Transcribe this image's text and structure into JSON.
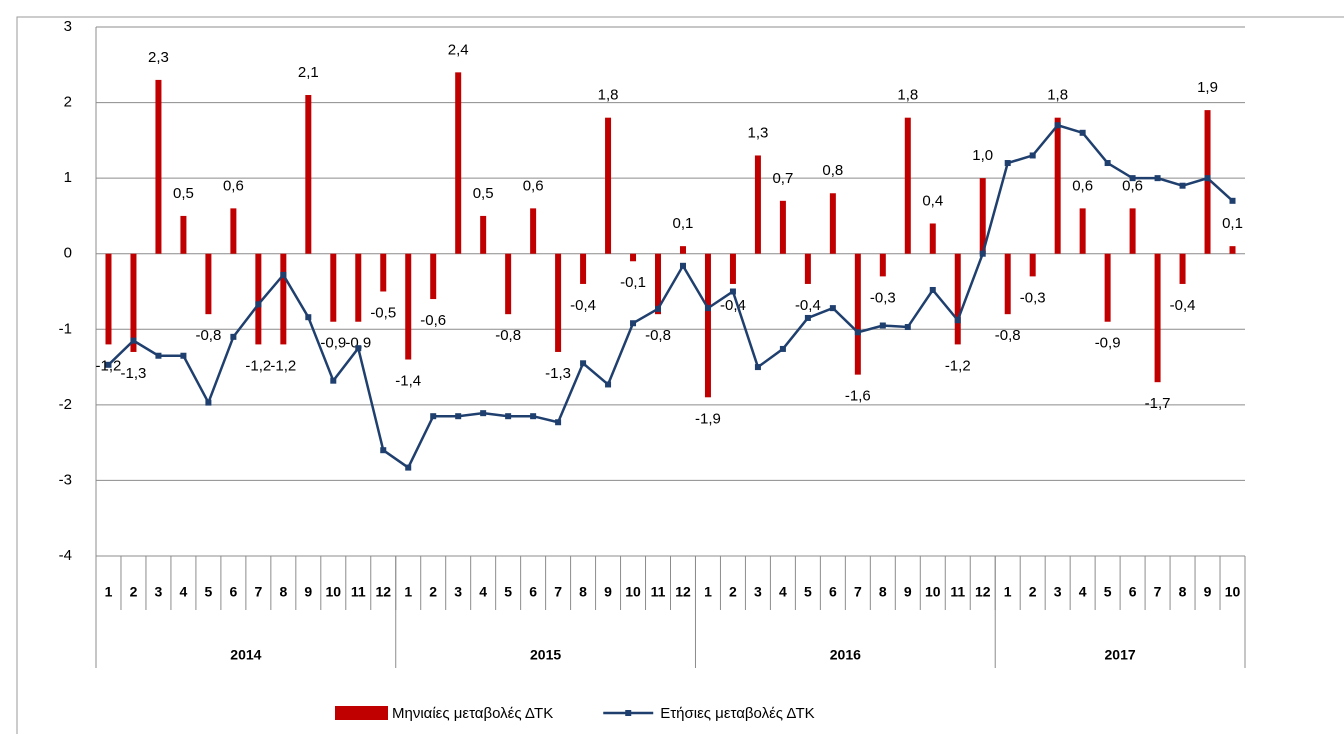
{
  "chart_data": {
    "type": "bar-line",
    "categories": [
      "1",
      "2",
      "3",
      "4",
      "5",
      "6",
      "7",
      "8",
      "9",
      "10",
      "11",
      "12",
      "1",
      "2",
      "3",
      "4",
      "5",
      "6",
      "7",
      "8",
      "9",
      "10",
      "11",
      "12",
      "1",
      "2",
      "3",
      "4",
      "5",
      "6",
      "7",
      "8",
      "9",
      "10",
      "11",
      "12",
      "1",
      "2",
      "3",
      "4",
      "5",
      "6",
      "7",
      "8",
      "9",
      "10"
    ],
    "groups": [
      "2014",
      "2015",
      "2016",
      "2017"
    ],
    "series": [
      {
        "name": "Μηνιαίες μεταβολές ΔΤΚ",
        "type": "bar",
        "color": "#c00000",
        "values": [
          -1.2,
          -1.3,
          2.3,
          0.5,
          -0.8,
          0.6,
          -1.2,
          -1.2,
          2.1,
          -0.9,
          -0.9,
          -0.5,
          -1.4,
          -0.6,
          2.4,
          0.5,
          -0.8,
          0.6,
          -1.3,
          -0.4,
          1.8,
          -0.1,
          -0.8,
          0.1,
          -1.9,
          -0.4,
          1.3,
          0.7,
          -0.4,
          0.8,
          -1.6,
          -0.3,
          1.8,
          0.4,
          -1.2,
          1.0,
          -0.8,
          -0.3,
          1.8,
          0.6,
          -0.9,
          0.6,
          -1.7,
          -0.4,
          1.9,
          0.1
        ],
        "value_labels": [
          "-1,2",
          "-1,3",
          "2,3",
          "0,5",
          "-0,8",
          "0,6",
          "-1,2",
          "-1,2",
          "2,1",
          "-0,9",
          "-0,9",
          "-0,5",
          "-1,4",
          "-0,6",
          "2,4",
          "0,5",
          "-0,8",
          "0,6",
          "-1,3",
          "-0,4",
          "1,8",
          "-0,1",
          "-0,8",
          "0,1",
          "-1,9",
          "-0,4",
          "1,3",
          "0,7",
          "-0,4",
          "0,8",
          "-1,6",
          "-0,3",
          "1,8",
          "0,4",
          "-1,2",
          "1,0",
          "-0,8",
          "-0,3",
          "1,8",
          "0,6",
          "-0,9",
          "0,6",
          "-1,7",
          "-0,4",
          "1,9",
          "0,1"
        ]
      },
      {
        "name": "Ετήσιες μεταβολές ΔΤΚ",
        "type": "line",
        "color": "#1f3f6e",
        "values": [
          -1.47,
          -1.15,
          -1.35,
          -1.35,
          -1.97,
          -1.1,
          -0.67,
          -0.28,
          -0.84,
          -1.68,
          -1.25,
          -2.6,
          -2.83,
          -2.15,
          -2.15,
          -2.11,
          -2.15,
          -2.15,
          -2.23,
          -1.45,
          -1.73,
          -0.92,
          -0.73,
          -0.16,
          -0.72,
          -0.5,
          -1.5,
          -1.26,
          -0.85,
          -0.72,
          -1.04,
          -0.95,
          -0.97,
          -0.48,
          -0.88,
          0.0,
          1.2,
          1.3,
          1.7,
          1.6,
          1.2,
          1.0,
          1.0,
          0.9,
          1.0,
          0.7
        ]
      }
    ],
    "ylim": [
      -4,
      3
    ],
    "yticks": [
      -4,
      -3,
      -2,
      -1,
      0,
      1,
      2,
      3
    ],
    "grid": true
  }
}
